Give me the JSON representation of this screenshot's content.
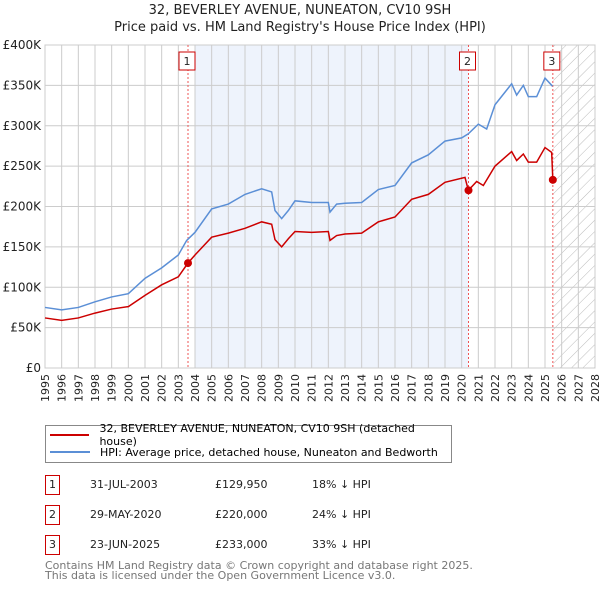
{
  "chart_data": {
    "type": "line",
    "title": "32, BEVERLEY AVENUE, NUNEATON, CV10 9SH",
    "subtitle": "Price paid vs. HM Land Registry's House Price Index (HPI)",
    "xlim": [
      1995,
      2028
    ],
    "ylim": [
      0,
      400000
    ],
    "yticks": [
      {
        "v": 0,
        "label": "£0"
      },
      {
        "v": 50000,
        "label": "£50K"
      },
      {
        "v": 100000,
        "label": "£100K"
      },
      {
        "v": 150000,
        "label": "£150K"
      },
      {
        "v": 200000,
        "label": "£200K"
      },
      {
        "v": 250000,
        "label": "£250K"
      },
      {
        "v": 300000,
        "label": "£300K"
      },
      {
        "v": 350000,
        "label": "£350K"
      },
      {
        "v": 400000,
        "label": "£400K"
      }
    ],
    "xticks": [
      "1995",
      "1996",
      "1997",
      "1998",
      "1999",
      "2000",
      "2001",
      "2002",
      "2003",
      "2004",
      "2005",
      "2006",
      "2007",
      "2008",
      "2009",
      "2010",
      "2011",
      "2012",
      "2013",
      "2014",
      "2015",
      "2016",
      "2017",
      "2018",
      "2019",
      "2020",
      "2021",
      "2022",
      "2023",
      "2024",
      "2025",
      "2026",
      "2027",
      "2028"
    ],
    "shaded_range": [
      2004,
      2020.4
    ],
    "forecast_from": 2025.5,
    "series": [
      {
        "name": "32, BEVERLEY AVENUE, NUNEATON, CV10 9SH (detached house)",
        "color": "#cc0000",
        "x": [
          1995,
          1996,
          1997,
          1998,
          1999,
          2000,
          2001,
          2002,
          2003,
          2003.58,
          2004,
          2005,
          2006,
          2007,
          2008,
          2008.6,
          2008.8,
          2009.2,
          2009.6,
          2010,
          2011,
          2012,
          2012.1,
          2012.5,
          2013,
          2014,
          2015,
          2016,
          2017,
          2018,
          2019,
          2020.2,
          2020.4,
          2020.9,
          2021.3,
          2022,
          2023,
          2023.3,
          2023.7,
          2024,
          2024.5,
          2025,
          2025.4,
          2025.47
        ],
        "y": [
          62,
          59,
          62,
          68,
          73,
          76,
          90,
          103,
          113,
          130,
          140,
          162,
          167,
          173,
          181,
          178,
          159,
          150,
          160,
          169,
          168,
          169,
          158,
          164,
          166,
          167,
          181,
          187,
          209,
          215,
          230,
          236,
          220,
          231,
          226,
          250,
          268,
          257,
          265,
          255,
          255,
          273,
          267,
          233
        ]
      },
      {
        "name": "HPI: Average price, detached house, Nuneaton and Bedworth",
        "color": "#5b8fd6",
        "x": [
          1995,
          1996,
          1997,
          1998,
          1999,
          2000,
          2001,
          2002,
          2003,
          2003.5,
          2004,
          2005,
          2006,
          2007,
          2008,
          2008.6,
          2008.8,
          2009.2,
          2009.6,
          2010,
          2011,
          2012,
          2012.1,
          2012.5,
          2013,
          2014,
          2015,
          2016,
          2017,
          2018,
          2019,
          2020,
          2020.4,
          2021,
          2021.5,
          2022,
          2023,
          2023.3,
          2023.7,
          2024,
          2024.5,
          2025,
          2025.45
        ],
        "y": [
          75,
          72,
          75,
          82,
          88,
          92,
          111,
          124,
          140,
          158,
          168,
          197,
          203,
          215,
          222,
          218,
          195,
          185,
          195,
          207,
          205,
          205,
          193,
          203,
          204,
          205,
          221,
          226,
          254,
          264,
          281,
          285,
          290,
          302,
          296,
          326,
          352,
          338,
          350,
          336,
          336,
          359,
          349
        ]
      }
    ],
    "y_units": "thousands GBP",
    "sales": [
      {
        "label": "1",
        "x": 2003.58,
        "y": 129.95,
        "date": "31-JUL-2003",
        "price": "£129,950",
        "hpi": "18% ↓ HPI"
      },
      {
        "label": "2",
        "x": 2020.41,
        "y": 220,
        "date": "29-MAY-2020",
        "price": "£220,000",
        "hpi": "24% ↓ HPI"
      },
      {
        "label": "3",
        "x": 2025.47,
        "y": 233,
        "date": "23-JUN-2025",
        "price": "£233,000",
        "hpi": "33% ↓ HPI"
      }
    ]
  },
  "footer": [
    "Contains HM Land Registry data © Crown copyright and database right 2025.",
    "This data is licensed under the Open Government Licence v3.0."
  ]
}
